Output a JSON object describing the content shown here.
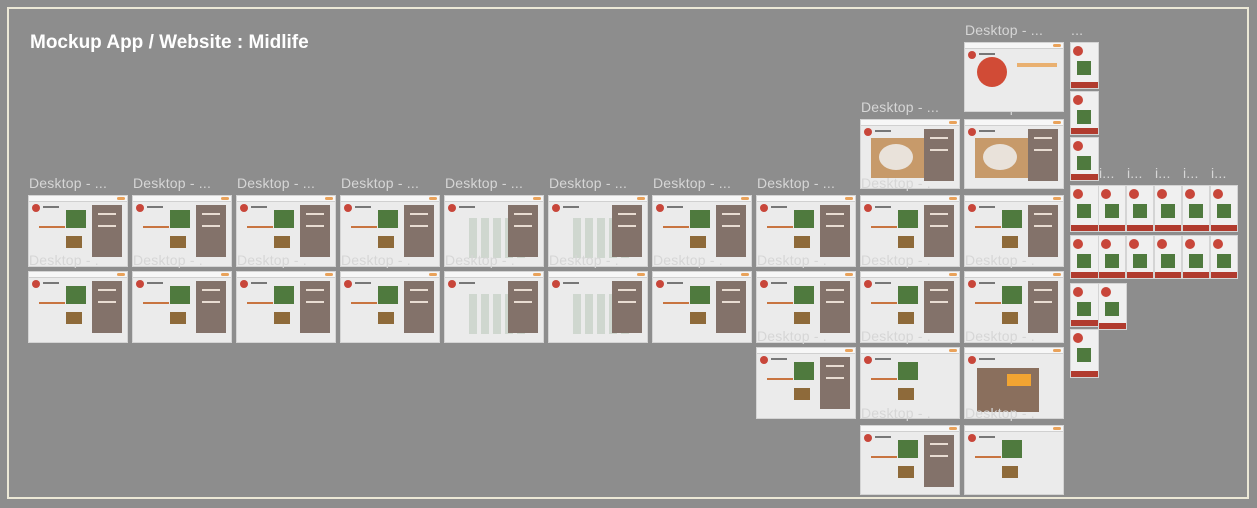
{
  "canvas": {
    "title": "Mockup App / Website : Midlife",
    "frame_label": "Desktop - ...",
    "frame_label_short": "Desktop - .",
    "small_label": "i...",
    "small_label_top": "..."
  },
  "colors": {
    "background": "#8d8d8d",
    "border": "#ece8d6",
    "brand_red": "#c8463a",
    "panel_brown": "#83726a",
    "accent_orange": "#e9a25a"
  }
}
